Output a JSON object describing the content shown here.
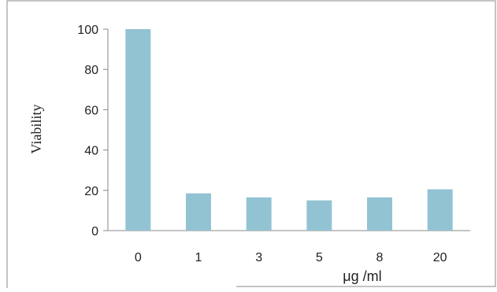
{
  "chart_data": {
    "type": "bar",
    "title": "",
    "xlabel": "μg /ml",
    "ylabel": "Viability",
    "categories": [
      "0",
      "1",
      "3",
      "5",
      "8",
      "20"
    ],
    "values": [
      100,
      18.5,
      16.5,
      15,
      16.5,
      20.5
    ],
    "ylim": [
      0,
      100
    ],
    "yticks": [
      "0",
      "20",
      "40",
      "60",
      "80",
      "100"
    ],
    "grid": false,
    "legend": "none",
    "colors": {
      "bar": "#92c3d3",
      "axis": "#888888",
      "border": "#888888"
    }
  }
}
